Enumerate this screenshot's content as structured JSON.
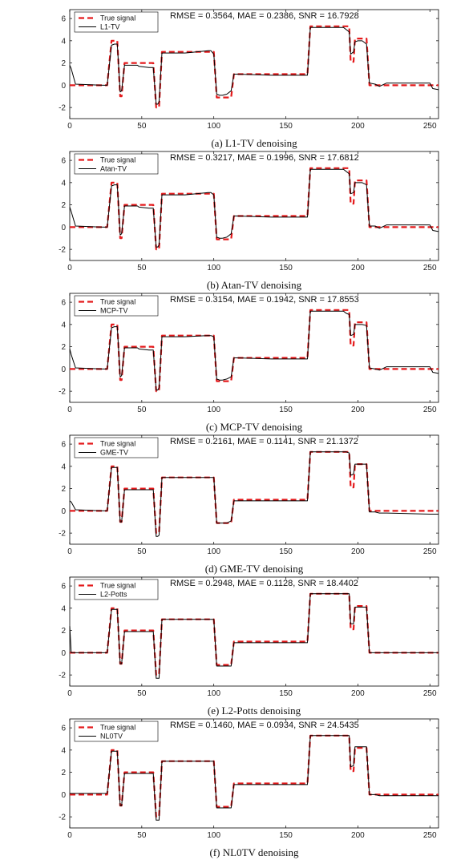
{
  "figure": {
    "x_ticks": [
      0,
      50,
      100,
      150,
      200,
      250
    ],
    "y_ticks": [
      -2,
      0,
      2,
      4,
      6
    ],
    "x_range": [
      0,
      256
    ],
    "y_range": [
      -3,
      6.8
    ],
    "colors": {
      "true_signal": "#e41a1c",
      "estimate": "#000000",
      "axes": "#000000"
    }
  },
  "chart_data": [
    {
      "type": "line",
      "caption": "(a)  L1-TV denoising",
      "metrics": "RMSE = 0.3564, MAE = 0.2386, SNR = 16.7928",
      "legend": [
        "True signal",
        "L1-TV"
      ],
      "x": [
        0,
        1,
        4,
        24,
        26,
        29,
        31,
        33,
        35,
        36,
        38,
        47,
        48,
        55,
        57,
        58,
        60,
        61,
        62,
        64,
        66,
        80,
        96,
        98,
        100,
        102,
        104,
        106,
        109,
        112,
        114,
        116,
        140,
        160,
        165,
        167,
        169,
        180,
        185,
        190,
        192,
        194,
        195,
        197,
        198,
        200,
        203,
        206,
        208,
        212,
        215,
        220,
        250,
        252,
        256
      ],
      "series": [
        {
          "name": "True signal",
          "values": [
            0,
            0,
            0,
            0,
            0,
            4,
            4,
            4,
            -1,
            -1,
            2,
            2,
            2,
            2,
            2,
            2,
            -2,
            -2,
            -2,
            3,
            3,
            3,
            3,
            3,
            3,
            -1.1,
            -1.1,
            -1.1,
            -1.1,
            -1.1,
            1,
            1,
            1,
            1,
            1,
            5.3,
            5.3,
            5.3,
            5.3,
            5.3,
            5.3,
            5.3,
            2.1,
            2.1,
            4.2,
            4.2,
            4.2,
            4.2,
            0,
            0,
            0,
            0,
            0,
            0,
            0
          ]
        },
        {
          "name": "L1-TV",
          "values": [
            1.8,
            1.5,
            0.1,
            0,
            0,
            3.6,
            3.7,
            3.7,
            -0.6,
            -0.5,
            1.8,
            1.8,
            1.7,
            1.6,
            1.6,
            1.6,
            -1.7,
            -1.7,
            -1.5,
            2.9,
            2.9,
            2.9,
            3.1,
            3.1,
            2.8,
            -0.8,
            -0.9,
            -0.9,
            -0.8,
            -0.5,
            1,
            1,
            0.9,
            0.9,
            0.9,
            5.2,
            5.2,
            5.2,
            5.2,
            5.2,
            5,
            4.8,
            2.8,
            3,
            3.9,
            4,
            4,
            3.7,
            0.2,
            0.1,
            -0.1,
            0.2,
            0.2,
            -0.3,
            -0.4
          ]
        }
      ]
    },
    {
      "type": "line",
      "caption": "(b)  Atan-TV denoising",
      "metrics": "RMSE = 0.3217, MAE = 0.1996, SNR = 17.6812",
      "legend": [
        "True signal",
        "Atan-TV"
      ],
      "x": [
        0,
        1,
        4,
        24,
        26,
        29,
        31,
        33,
        35,
        36,
        38,
        47,
        48,
        55,
        57,
        58,
        60,
        61,
        62,
        64,
        66,
        80,
        96,
        98,
        100,
        102,
        104,
        106,
        109,
        112,
        114,
        116,
        140,
        160,
        165,
        167,
        169,
        180,
        185,
        190,
        192,
        194,
        195,
        197,
        198,
        200,
        203,
        206,
        208,
        212,
        215,
        220,
        250,
        252,
        256
      ],
      "series": [
        {
          "name": "True signal",
          "values": [
            0,
            0,
            0,
            0,
            0,
            4,
            4,
            4,
            -1,
            -1,
            2,
            2,
            2,
            2,
            2,
            2,
            -2,
            -2,
            -2,
            3,
            3,
            3,
            3,
            3,
            3,
            -1.1,
            -1.1,
            -1.1,
            -1.1,
            -1.1,
            1,
            1,
            1,
            1,
            1,
            5.3,
            5.3,
            5.3,
            5.3,
            5.3,
            5.3,
            5.3,
            2.1,
            2.1,
            4.2,
            4.2,
            4.2,
            4.2,
            0,
            0,
            0,
            0,
            0,
            0,
            0
          ]
        },
        {
          "name": "Atan-TV",
          "values": [
            1.8,
            1.4,
            0.1,
            0,
            0,
            3.7,
            3.8,
            3.8,
            -0.7,
            -0.6,
            1.9,
            1.9,
            1.8,
            1.7,
            1.7,
            1.7,
            -1.8,
            -1.8,
            -1.6,
            2.9,
            2.9,
            2.9,
            3.1,
            3.1,
            2.9,
            -0.9,
            -1,
            -1,
            -0.9,
            -0.6,
            1,
            1,
            0.9,
            0.9,
            0.9,
            5.2,
            5.2,
            5.2,
            5.2,
            5.2,
            5,
            4.8,
            3,
            3.1,
            4,
            4,
            4,
            3.8,
            0.1,
            0.1,
            -0.1,
            0.2,
            0.2,
            -0.3,
            -0.4
          ]
        }
      ]
    },
    {
      "type": "line",
      "caption": "(c)  MCP-TV denoising",
      "metrics": "RMSE = 0.3154, MAE = 0.1942, SNR = 17.8553",
      "legend": [
        "True signal",
        "MCP-TV"
      ],
      "x": [
        0,
        1,
        4,
        24,
        26,
        29,
        31,
        33,
        35,
        36,
        38,
        47,
        48,
        55,
        57,
        58,
        60,
        61,
        62,
        64,
        66,
        80,
        96,
        98,
        100,
        102,
        104,
        106,
        109,
        112,
        114,
        116,
        140,
        160,
        165,
        167,
        169,
        180,
        185,
        190,
        192,
        194,
        195,
        197,
        198,
        200,
        203,
        206,
        208,
        212,
        215,
        220,
        250,
        252,
        256
      ],
      "series": [
        {
          "name": "True signal",
          "values": [
            0,
            0,
            0,
            0,
            0,
            4,
            4,
            4,
            -1,
            -1,
            2,
            2,
            2,
            2,
            2,
            2,
            -2,
            -2,
            -2,
            3,
            3,
            3,
            3,
            3,
            3,
            -1.1,
            -1.1,
            -1.1,
            -1.1,
            -1.1,
            1,
            1,
            1,
            1,
            1,
            5.3,
            5.3,
            5.3,
            5.3,
            5.3,
            5.3,
            5.3,
            2.1,
            2.1,
            4.2,
            4.2,
            4.2,
            4.2,
            0,
            0,
            0,
            0,
            0,
            0,
            0
          ]
        },
        {
          "name": "MCP-TV",
          "values": [
            1.8,
            1.3,
            0.1,
            0,
            0,
            3.7,
            3.8,
            3.8,
            -0.7,
            -0.6,
            1.9,
            1.9,
            1.8,
            1.7,
            1.7,
            1.7,
            -1.9,
            -1.9,
            -1.7,
            2.9,
            2.9,
            2.9,
            3,
            3,
            2.9,
            -0.9,
            -1,
            -1,
            -0.9,
            -0.7,
            1,
            1,
            0.9,
            0.9,
            0.9,
            5.2,
            5.2,
            5.2,
            5.2,
            5.2,
            5,
            4.9,
            3,
            3.1,
            4,
            4,
            4,
            3.9,
            0.1,
            0,
            -0.1,
            0.2,
            0.2,
            -0.3,
            -0.4
          ]
        }
      ]
    },
    {
      "type": "line",
      "caption": "(d)  GME-TV denoising",
      "metrics": "RMSE = 0.2161, MAE = 0.1141, SNR = 21.1372",
      "legend": [
        "True signal",
        "GME-TV"
      ],
      "x": [
        0,
        1,
        4,
        24,
        26,
        29,
        31,
        33,
        35,
        36,
        38,
        47,
        48,
        55,
        57,
        58,
        60,
        61,
        62,
        64,
        66,
        80,
        96,
        98,
        100,
        102,
        104,
        106,
        109,
        112,
        114,
        116,
        140,
        160,
        165,
        167,
        169,
        180,
        185,
        190,
        192,
        194,
        195,
        197,
        198,
        200,
        203,
        206,
        208,
        212,
        215,
        220,
        250,
        252,
        256
      ],
      "series": [
        {
          "name": "True signal",
          "values": [
            0,
            0,
            0,
            0,
            0,
            4,
            4,
            4,
            -1,
            -1,
            2,
            2,
            2,
            2,
            2,
            2,
            -2,
            -2,
            -2,
            3,
            3,
            3,
            3,
            3,
            3,
            -1.1,
            -1.1,
            -1.1,
            -1.1,
            -1.1,
            1,
            1,
            1,
            1,
            1,
            5.3,
            5.3,
            5.3,
            5.3,
            5.3,
            5.3,
            5.3,
            2.1,
            2.1,
            4.2,
            4.2,
            4.2,
            4.2,
            0,
            0,
            0,
            0,
            0,
            0,
            0
          ]
        },
        {
          "name": "GME-TV",
          "values": [
            0.9,
            0.8,
            0.1,
            0,
            0,
            3.9,
            3.9,
            3.9,
            -1,
            -1,
            1.9,
            1.9,
            1.9,
            1.9,
            1.9,
            1.9,
            -2.3,
            -2.3,
            -2.2,
            3,
            3,
            3,
            3,
            3,
            3,
            -1.1,
            -1.1,
            -1.1,
            -1.1,
            -0.9,
            0.9,
            0.9,
            0.9,
            0.9,
            0.9,
            5.3,
            5.3,
            5.3,
            5.3,
            5.3,
            5.3,
            5.2,
            3.2,
            3.3,
            4.2,
            4.2,
            4.2,
            4.2,
            -0.1,
            -0.1,
            -0.2,
            -0.2,
            -0.3,
            -0.3,
            -0.3
          ]
        }
      ]
    },
    {
      "type": "line",
      "caption": "(e)  L2-Potts denoising",
      "metrics": "RMSE = 0.2948, MAE = 0.1128, SNR = 18.4402",
      "legend": [
        "True signal",
        "L2-Potts"
      ],
      "x": [
        0,
        1,
        4,
        24,
        26,
        29,
        31,
        33,
        35,
        36,
        38,
        47,
        48,
        55,
        57,
        58,
        60,
        61,
        62,
        64,
        66,
        80,
        96,
        98,
        100,
        102,
        104,
        106,
        109,
        112,
        114,
        116,
        140,
        160,
        165,
        167,
        169,
        180,
        185,
        190,
        192,
        194,
        195,
        197,
        198,
        200,
        203,
        206,
        208,
        212,
        215,
        220,
        250,
        252,
        256
      ],
      "series": [
        {
          "name": "True signal",
          "values": [
            0,
            0,
            0,
            0,
            0,
            4,
            4,
            4,
            -1,
            -1,
            2,
            2,
            2,
            2,
            2,
            2,
            -2,
            -2,
            -2,
            3,
            3,
            3,
            3,
            3,
            3,
            -1.1,
            -1.1,
            -1.1,
            -1.1,
            -1.1,
            1,
            1,
            1,
            1,
            1,
            5.3,
            5.3,
            5.3,
            5.3,
            5.3,
            5.3,
            5.3,
            2.1,
            2.1,
            4.2,
            4.2,
            4.2,
            4.2,
            0,
            0,
            0,
            0,
            0,
            0,
            0
          ]
        },
        {
          "name": "L2-Potts",
          "values": [
            2.4,
            0,
            0,
            0,
            0,
            3.9,
            3.9,
            3.9,
            -1,
            -1,
            1.9,
            1.9,
            1.9,
            1.9,
            1.9,
            1.9,
            -2.3,
            -2.3,
            -2.3,
            3,
            3,
            3,
            3,
            3,
            3,
            -1.2,
            -1.2,
            -1.2,
            -1.2,
            -1.2,
            0.9,
            0.9,
            0.9,
            0.9,
            0.9,
            5.3,
            5.3,
            5.3,
            5.3,
            5.3,
            5.3,
            5.3,
            2.6,
            2.6,
            4.1,
            4.1,
            4.1,
            4.1,
            0,
            0,
            0,
            0,
            0,
            0,
            0
          ]
        }
      ]
    },
    {
      "type": "line",
      "caption": "(f)  NL0TV denoising",
      "metrics": "RMSE = 0.1460, MAE = 0.0934, SNR = 24.5435",
      "legend": [
        "True signal",
        "NL0TV"
      ],
      "x": [
        0,
        1,
        4,
        24,
        26,
        29,
        31,
        33,
        35,
        36,
        38,
        47,
        48,
        55,
        57,
        58,
        60,
        61,
        62,
        64,
        66,
        80,
        96,
        98,
        100,
        102,
        104,
        106,
        109,
        112,
        114,
        116,
        140,
        160,
        165,
        167,
        169,
        180,
        185,
        190,
        192,
        194,
        195,
        197,
        198,
        200,
        203,
        206,
        208,
        212,
        215,
        220,
        250,
        252,
        256
      ],
      "series": [
        {
          "name": "True signal",
          "values": [
            0,
            0,
            0,
            0,
            0,
            4,
            4,
            4,
            -1,
            -1,
            2,
            2,
            2,
            2,
            2,
            2,
            -2,
            -2,
            -2,
            3,
            3,
            3,
            3,
            3,
            3,
            -1.1,
            -1.1,
            -1.1,
            -1.1,
            -1.1,
            1,
            1,
            1,
            1,
            1,
            5.3,
            5.3,
            5.3,
            5.3,
            5.3,
            5.3,
            5.3,
            2.1,
            2.1,
            4.2,
            4.2,
            4.2,
            4.2,
            0,
            0,
            0,
            0,
            0,
            0,
            0
          ]
        },
        {
          "name": "NL0TV",
          "values": [
            0.1,
            0.1,
            0.1,
            0.1,
            0.1,
            3.9,
            3.9,
            3.9,
            -1,
            -1,
            1.9,
            1.9,
            1.9,
            1.9,
            1.9,
            1.9,
            -2.3,
            -2.3,
            -2.3,
            3,
            3,
            3,
            3,
            3,
            3,
            -1.2,
            -1.2,
            -1.2,
            -1.2,
            -1.2,
            0.9,
            0.9,
            0.9,
            0.9,
            0.9,
            5.3,
            5.3,
            5.3,
            5.3,
            5.3,
            5.3,
            5.3,
            2.5,
            2.6,
            4.3,
            4.3,
            4.3,
            4.3,
            0,
            0,
            -0.1,
            -0.1,
            -0.1,
            -0.1,
            -0.1
          ]
        }
      ]
    }
  ]
}
